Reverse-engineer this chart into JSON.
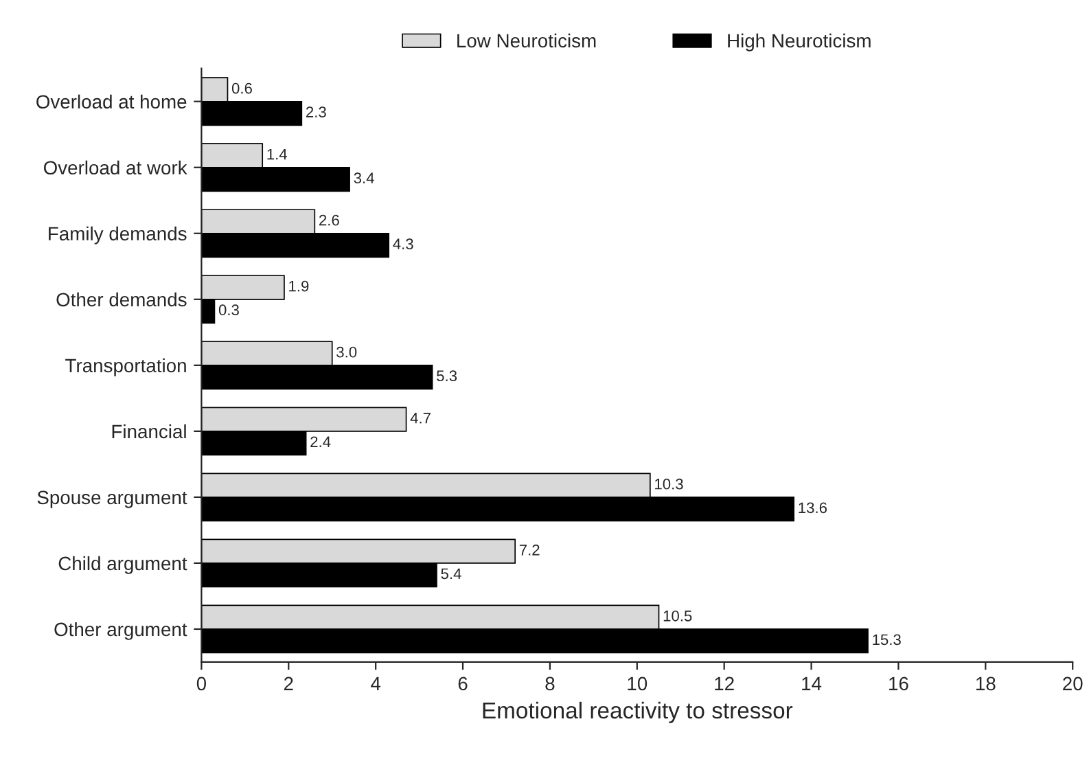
{
  "chart_data": {
    "type": "bar",
    "orientation": "horizontal",
    "xlabel": "Emotional reactivity to stressor",
    "categories": [
      "Overload at home",
      "Overload at work",
      "Family demands",
      "Other demands",
      "Transportation",
      "Financial",
      "Spouse argument",
      "Child argument",
      "Other argument"
    ],
    "series": [
      {
        "name": "Low Neuroticism",
        "color": "#d9d9d9",
        "values": [
          0.6,
          1.4,
          2.6,
          1.9,
          3.0,
          4.7,
          10.3,
          7.2,
          10.5
        ]
      },
      {
        "name": "High Neuroticism",
        "color": "#000000",
        "values": [
          2.3,
          3.4,
          4.3,
          0.3,
          5.3,
          2.4,
          13.6,
          5.4,
          15.3
        ]
      }
    ],
    "value_labels": [
      [
        "0.6",
        "1.4",
        "2.6",
        "1.9",
        "3.0",
        "4.7",
        "10.3",
        "7.2",
        "10.5"
      ],
      [
        "2.3",
        "3.4",
        "4.3",
        "0.3",
        "5.3",
        "2.4",
        "13.6",
        "5.4",
        "15.3"
      ]
    ],
    "xlim": [
      0,
      20
    ],
    "xticks": [
      0,
      2,
      4,
      6,
      8,
      10,
      12,
      14,
      16,
      18,
      20
    ],
    "grid": false,
    "legend": "top"
  }
}
